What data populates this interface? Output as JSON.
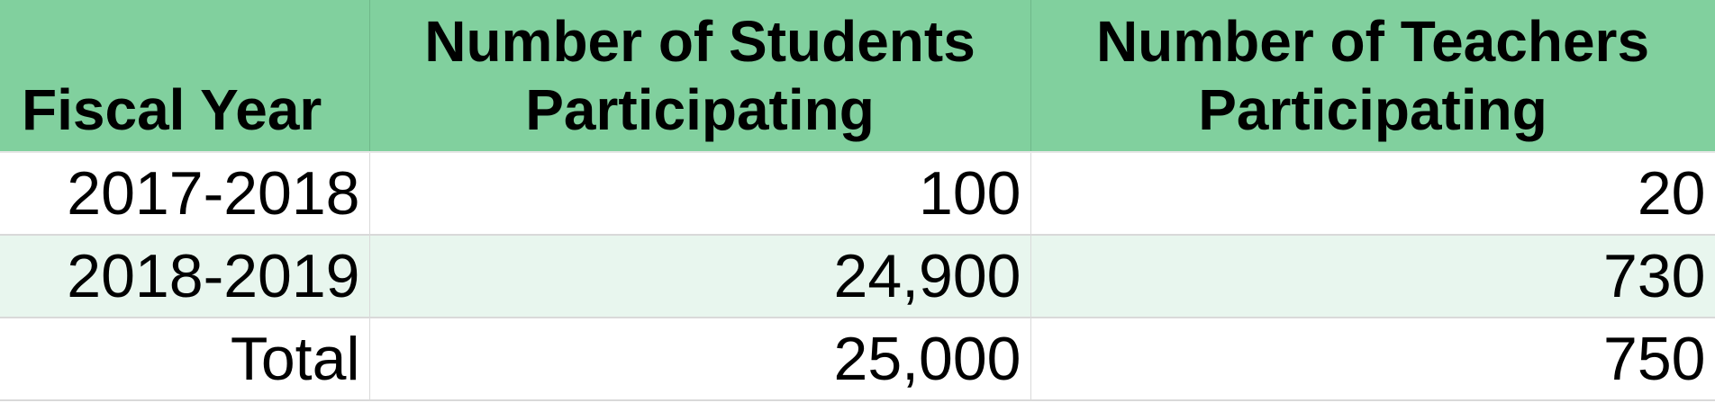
{
  "table": {
    "headers": {
      "fiscal_year": "Fiscal Year",
      "students_line1": "Number of Students",
      "students_line2": "Participating",
      "teachers_line1": "Number of Teachers",
      "teachers_line2": "Participating"
    },
    "rows": [
      {
        "year": "2017-2018",
        "students": "100",
        "teachers": "20"
      },
      {
        "year": "2018-2019",
        "students": "24,900",
        "teachers": "730"
      },
      {
        "year": "Total",
        "students": "25,000",
        "teachers": "750"
      }
    ]
  },
  "colors": {
    "header_background": "#81d09e",
    "alternate_row_background": "#e8f6ee"
  }
}
